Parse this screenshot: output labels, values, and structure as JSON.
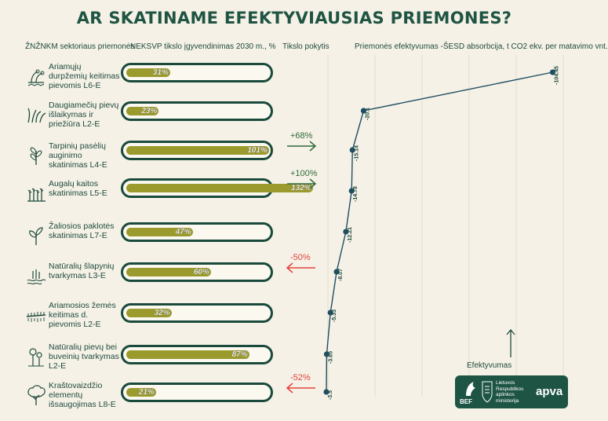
{
  "title": "AR SKATINAME EFEKTYVIAUSIAS PRIEMONES?",
  "headers": {
    "measure": "ŽNŽNKM  sektoriaus priemonės",
    "progress": "NEKSVP tikslo įgyvendinimas 2030 m., %",
    "change": "Tikslo pokytis",
    "efficiency": "Priemonės efektyvumas -ŠESD absorbcija, t CO2 ekv. per matavimo vnt."
  },
  "efficiency_axis_label": "Efektyvumas",
  "logo": {
    "bef": "BEF",
    "ministry": "Lietuvos Respublikos aplinkos ministerija",
    "apva": "apva"
  },
  "colors": {
    "title": "#1f5443",
    "bar_fill": "#9a9a2d",
    "pill_border": "#1a4a3c",
    "line": "#1f4e63",
    "positive": "#2f6b3a",
    "negative": "#e2443d",
    "background": "#f5f1e6"
  },
  "measures": [
    {
      "label": "Ariamųjų durpžemių keitimas pievomis L6-E",
      "icon": "peat-plant-icon",
      "progress": 31,
      "progress_label": "31%",
      "change": ""
    },
    {
      "label": "Daugiamečių pievų išlaikymas ir priežiūra L2-E",
      "icon": "grass-icon",
      "progress": 23,
      "progress_label": "23%",
      "change": ""
    },
    {
      "label": "Tarpinių pasėlių auginimo skatinimas L4-E",
      "icon": "sprout-plant-icon",
      "progress": 101,
      "progress_label": "101%",
      "change": "+68%"
    },
    {
      "label": "Augalų kaitos skatinimas L5-E",
      "icon": "crop-field-icon",
      "progress": 132,
      "progress_label": "132%",
      "change": "+100%"
    },
    {
      "label": "Žaliosios paklotės skatinimas L7-E",
      "icon": "seedling-icon",
      "progress": 47,
      "progress_label": "47%",
      "change": ""
    },
    {
      "label": "Natūralių šlapynių tvarkymas L3-E",
      "icon": "wetland-icon",
      "progress": 60,
      "progress_label": "60%",
      "change": "-50%"
    },
    {
      "label": "Ariamosios žemės keitimas d. pievomis L2-E",
      "icon": "arable-land-icon",
      "progress": 32,
      "progress_label": "32%",
      "change": ""
    },
    {
      "label": "Natūralių pievų bei buveinių tvarkymas L2-E",
      "icon": "flower-icon",
      "progress": 87,
      "progress_label": "87%",
      "change": ""
    },
    {
      "label": "Kraštovaizdžio elementų išsaugojimas L8-E",
      "icon": "tree-icon",
      "progress": 21,
      "progress_label": "21%",
      "change": "-52%"
    }
  ],
  "chart_data": {
    "type": "line",
    "categories": [
      "L6-E",
      "L2-E",
      "L4-E",
      "L5-E",
      "L7-E",
      "L3-E",
      "L2-E",
      "L2-E",
      "L8-E"
    ],
    "values": [
      -104.45,
      -20.1,
      -15.14,
      -14.78,
      -12.21,
      -8.07,
      -5.33,
      -3.65,
      -3.5
    ],
    "value_labels": [
      "-104.45",
      "-20.1",
      "-15.14",
      "-14.78",
      "-12.21",
      "-8.07",
      "-5.33",
      "-3.65",
      "-3.5"
    ],
    "progress_bars": [
      31,
      23,
      101,
      132,
      47,
      60,
      32,
      87,
      21
    ],
    "target_change": [
      "",
      "",
      "+68%",
      "+100%",
      "",
      "-50%",
      "",
      "",
      "-52%"
    ],
    "xlabel": "Efektyvumas",
    "grid": true,
    "orientation": "horizontal-values"
  }
}
